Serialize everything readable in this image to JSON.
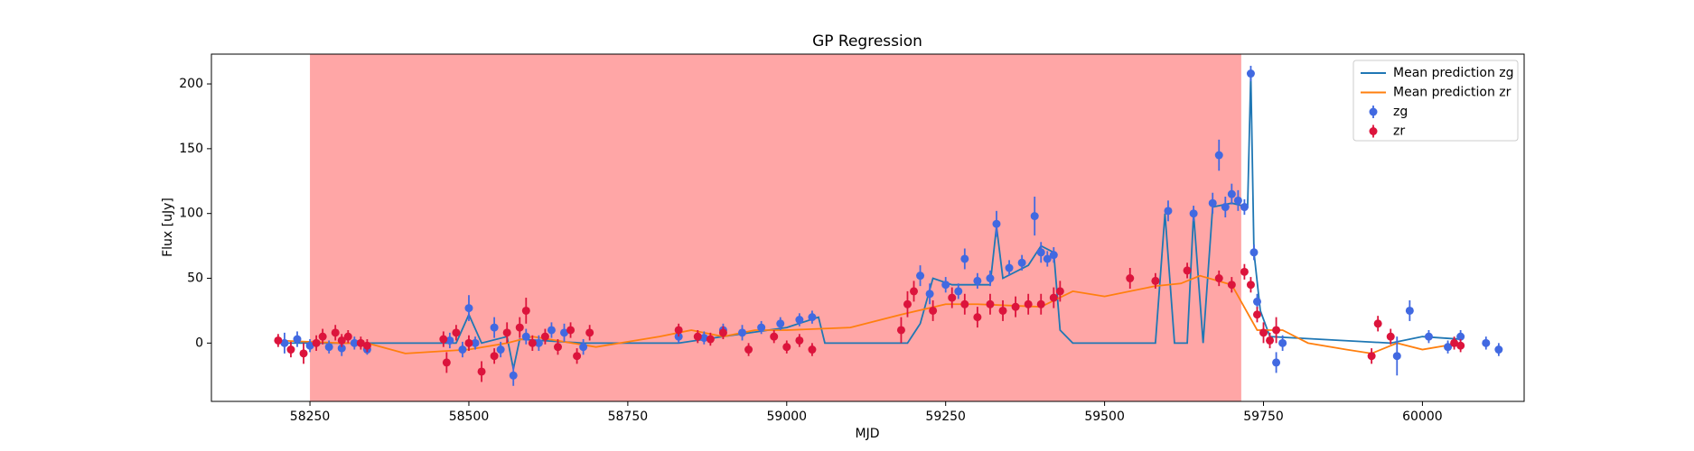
{
  "chart_data": {
    "type": "line",
    "title": "GP Regression",
    "xlabel": "MJD",
    "ylabel": "Flux [uJy]",
    "xlim": [
      58095,
      60160
    ],
    "ylim": [
      -45,
      223
    ],
    "xticks": [
      58250,
      58500,
      58750,
      59000,
      59250,
      59500,
      59750,
      60000
    ],
    "yticks": [
      0,
      50,
      100,
      150,
      200
    ],
    "legend": "upper right",
    "span": {
      "x": [
        58250,
        59715
      ],
      "color": "#ffa6a6"
    },
    "series": [
      {
        "name": "Mean prediction zg",
        "type": "line",
        "color": "#1f77b4",
        "x": [
          58200,
          58340,
          58480,
          58500,
          58520,
          58560,
          58570,
          58580,
          58680,
          58830,
          58900,
          59000,
          59050,
          59060,
          59190,
          59210,
          59230,
          59260,
          59290,
          59320,
          59330,
          59340,
          59380,
          59400,
          59420,
          59430,
          59450,
          59580,
          59595,
          59610,
          59630,
          59640,
          59655,
          59670,
          59700,
          59725,
          59730,
          59735,
          59745,
          59760,
          59950,
          60000,
          60060
        ],
        "values": [
          0,
          0,
          0,
          22,
          0,
          5,
          -20,
          3,
          0,
          0,
          5,
          12,
          20,
          0,
          0,
          15,
          50,
          45,
          45,
          45,
          90,
          50,
          60,
          75,
          70,
          10,
          0,
          0,
          100,
          0,
          0,
          100,
          0,
          105,
          108,
          105,
          208,
          70,
          25,
          5,
          0,
          5,
          3
        ]
      },
      {
        "name": "Mean prediction zr",
        "type": "line",
        "color": "#ff7f0e",
        "x": [
          58200,
          58300,
          58340,
          58400,
          58500,
          58560,
          58600,
          58700,
          58800,
          58850,
          58900,
          58950,
          59000,
          59100,
          59180,
          59250,
          59300,
          59400,
          59450,
          59500,
          59580,
          59620,
          59650,
          59700,
          59740,
          59780,
          59820,
          59880,
          59920,
          59960,
          60000,
          60060
        ],
        "values": [
          2,
          0,
          0,
          -8,
          -5,
          0,
          5,
          -3,
          5,
          10,
          5,
          10,
          10,
          12,
          22,
          30,
          30,
          28,
          40,
          36,
          44,
          46,
          52,
          45,
          10,
          10,
          0,
          -5,
          -8,
          0,
          -5,
          0
        ]
      },
      {
        "name": "zg",
        "type": "errorbar",
        "color": "#4169e1",
        "x": [
          58210,
          58230,
          58250,
          58280,
          58300,
          58320,
          58340,
          58470,
          58490,
          58500,
          58510,
          58540,
          58550,
          58570,
          58590,
          58610,
          58630,
          58650,
          58680,
          58830,
          58870,
          58900,
          58930,
          58960,
          58990,
          59020,
          59040,
          59210,
          59225,
          59250,
          59270,
          59280,
          59300,
          59320,
          59330,
          59350,
          59370,
          59390,
          59400,
          59410,
          59420,
          59600,
          59640,
          59670,
          59680,
          59690,
          59700,
          59710,
          59720,
          59730,
          59735,
          59740,
          59770,
          59780,
          59960,
          59980,
          60010,
          60040,
          60060,
          60100,
          60120
        ],
        "values": [
          0,
          3,
          -2,
          -3,
          -4,
          0,
          -5,
          2,
          -5,
          27,
          0,
          12,
          -5,
          -25,
          5,
          0,
          10,
          8,
          -3,
          5,
          4,
          10,
          8,
          12,
          15,
          18,
          20,
          52,
          38,
          45,
          40,
          65,
          48,
          50,
          92,
          58,
          62,
          98,
          70,
          65,
          68,
          102,
          100,
          108,
          145,
          105,
          115,
          110,
          105,
          208,
          70,
          32,
          -15,
          0,
          -10,
          25,
          5,
          -3,
          5,
          0,
          -5
        ],
        "errors": [
          8,
          6,
          5,
          5,
          6,
          5,
          4,
          6,
          6,
          10,
          5,
          8,
          6,
          8,
          6,
          6,
          6,
          7,
          6,
          5,
          5,
          5,
          6,
          5,
          5,
          5,
          5,
          8,
          8,
          6,
          6,
          8,
          6,
          6,
          10,
          6,
          6,
          15,
          8,
          6,
          6,
          8,
          6,
          8,
          12,
          8,
          8,
          8,
          6,
          6,
          6,
          6,
          8,
          6,
          15,
          8,
          5,
          5,
          5,
          5,
          5
        ]
      },
      {
        "name": "zr",
        "type": "errorbar",
        "color": "#dc143c",
        "x": [
          58200,
          58220,
          58240,
          58260,
          58270,
          58290,
          58300,
          58310,
          58330,
          58340,
          58460,
          58465,
          58480,
          58500,
          58520,
          58540,
          58560,
          58580,
          58590,
          58600,
          58620,
          58640,
          58660,
          58670,
          58690,
          58830,
          58860,
          58880,
          58900,
          58940,
          58980,
          59000,
          59020,
          59040,
          59180,
          59190,
          59200,
          59230,
          59260,
          59280,
          59300,
          59320,
          59340,
          59360,
          59380,
          59400,
          59420,
          59430,
          59540,
          59580,
          59630,
          59680,
          59700,
          59720,
          59730,
          59740,
          59750,
          59760,
          59770,
          59920,
          59930,
          59950,
          60050,
          60060
        ],
        "values": [
          2,
          -5,
          -8,
          0,
          5,
          8,
          2,
          5,
          0,
          -2,
          3,
          -15,
          8,
          0,
          -22,
          -10,
          8,
          12,
          25,
          0,
          5,
          -3,
          10,
          -10,
          8,
          10,
          5,
          3,
          8,
          -5,
          5,
          -3,
          2,
          -5,
          10,
          30,
          40,
          25,
          35,
          30,
          20,
          30,
          25,
          28,
          30,
          30,
          35,
          40,
          50,
          48,
          56,
          50,
          45,
          55,
          45,
          22,
          8,
          2,
          10,
          -10,
          15,
          5,
          0,
          -2
        ],
        "errors": [
          5,
          6,
          8,
          6,
          6,
          6,
          5,
          5,
          5,
          5,
          6,
          8,
          6,
          6,
          8,
          6,
          8,
          8,
          10,
          6,
          6,
          6,
          6,
          6,
          6,
          5,
          5,
          5,
          5,
          5,
          5,
          5,
          5,
          5,
          10,
          10,
          8,
          8,
          8,
          8,
          8,
          8,
          8,
          8,
          8,
          8,
          8,
          8,
          8,
          6,
          6,
          6,
          6,
          6,
          6,
          6,
          8,
          6,
          10,
          6,
          6,
          6,
          5,
          5
        ]
      }
    ]
  }
}
